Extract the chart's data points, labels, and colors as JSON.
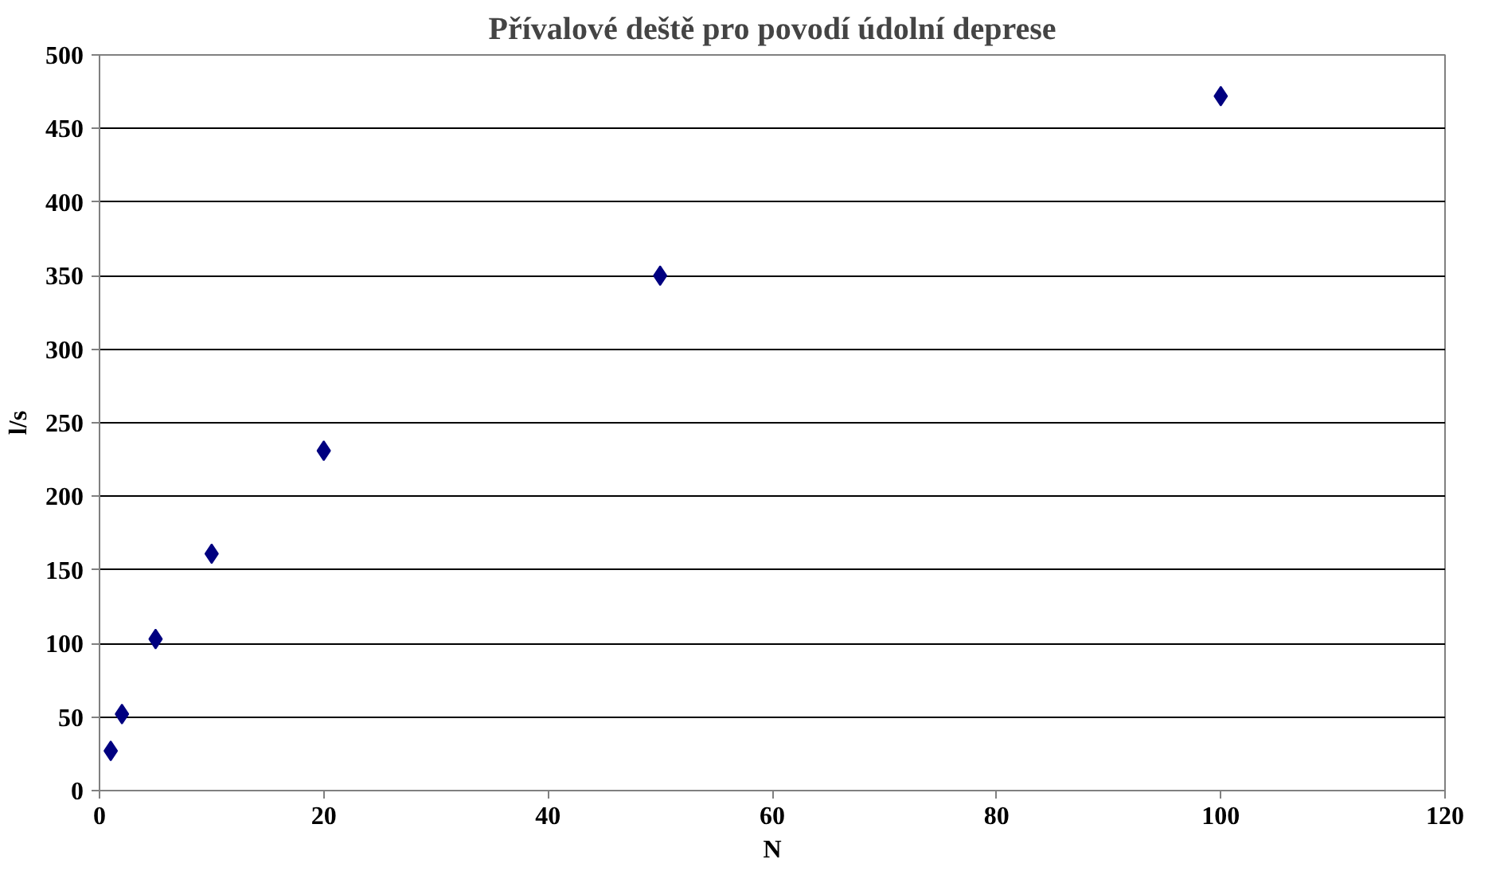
{
  "chart_data": {
    "type": "scatter",
    "title": "Přívalové deště pro povodí údolní deprese",
    "xlabel": "N",
    "ylabel": "l/s",
    "x": [
      1,
      2,
      5,
      10,
      20,
      50,
      100
    ],
    "series": [
      {
        "color": "#000080",
        "values": [
          27,
          52,
          103,
          161,
          231,
          350,
          472
        ]
      }
    ],
    "xlim": [
      0,
      120
    ],
    "xticks": [
      0,
      20,
      40,
      60,
      80,
      100,
      120
    ],
    "ylim": [
      0,
      500
    ],
    "yticks": [
      0,
      50,
      100,
      150,
      200,
      250,
      300,
      350,
      400,
      450,
      500
    ],
    "grid": "y",
    "marker": "diamond"
  }
}
